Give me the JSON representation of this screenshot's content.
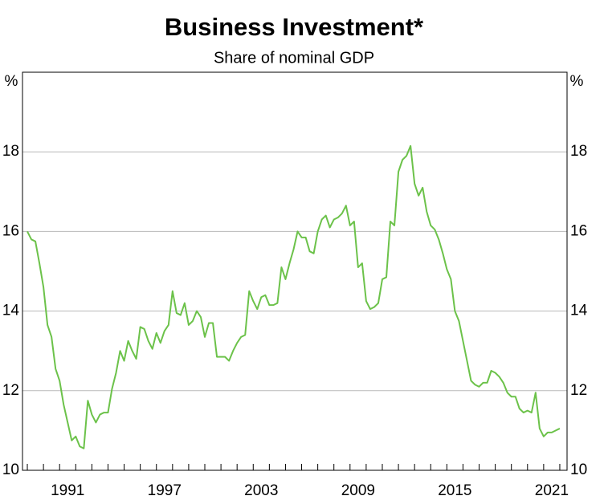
{
  "chart_data": {
    "type": "line",
    "title": "Business Investment*",
    "subtitle": "Share of nominal GDP",
    "y_unit": "%",
    "x": [
      1989,
      1989.25,
      1989.5,
      1989.75,
      1990,
      1990.25,
      1990.5,
      1990.75,
      1991,
      1991.25,
      1991.5,
      1991.75,
      1992,
      1992.25,
      1992.5,
      1992.75,
      1993,
      1993.25,
      1993.5,
      1993.75,
      1994,
      1994.25,
      1994.5,
      1994.75,
      1995,
      1995.25,
      1995.5,
      1995.75,
      1996,
      1996.25,
      1996.5,
      1996.75,
      1997,
      1997.25,
      1997.5,
      1997.75,
      1998,
      1998.25,
      1998.5,
      1998.75,
      1999,
      1999.25,
      1999.5,
      1999.75,
      2000,
      2000.25,
      2000.5,
      2000.75,
      2001,
      2001.25,
      2001.5,
      2001.75,
      2002,
      2002.25,
      2002.5,
      2002.75,
      2003,
      2003.25,
      2003.5,
      2003.75,
      2004,
      2004.25,
      2004.5,
      2004.75,
      2005,
      2005.25,
      2005.5,
      2005.75,
      2006,
      2006.25,
      2006.5,
      2006.75,
      2007,
      2007.25,
      2007.5,
      2007.75,
      2008,
      2008.25,
      2008.5,
      2008.75,
      2009,
      2009.25,
      2009.5,
      2009.75,
      2010,
      2010.25,
      2010.5,
      2010.75,
      2011,
      2011.25,
      2011.5,
      2011.75,
      2012,
      2012.25,
      2012.5,
      2012.75,
      2013,
      2013.25,
      2013.5,
      2013.75,
      2014,
      2014.25,
      2014.5,
      2014.75,
      2015,
      2015.25,
      2015.5,
      2015.75,
      2016,
      2016.25,
      2016.5,
      2016.75,
      2017,
      2017.25,
      2017.5,
      2017.75,
      2018,
      2018.25,
      2018.5,
      2018.75,
      2019,
      2019.25,
      2019.5,
      2019.75,
      2020,
      2020.25,
      2020.5,
      2020.75,
      2021,
      2021.25,
      2021.5,
      2021.75,
      2022
    ],
    "series": [
      {
        "name": "Business investment",
        "color": "#6cc24a",
        "values": [
          16.0,
          15.8,
          15.75,
          15.2,
          14.6,
          13.65,
          13.35,
          12.55,
          12.25,
          11.65,
          11.2,
          10.75,
          10.85,
          10.6,
          10.55,
          11.75,
          11.4,
          11.2,
          11.4,
          11.45,
          11.45,
          12.05,
          12.45,
          13.0,
          12.75,
          13.25,
          13.0,
          12.8,
          13.6,
          13.55,
          13.25,
          13.05,
          13.45,
          13.2,
          13.5,
          13.65,
          14.5,
          13.95,
          13.9,
          14.2,
          13.65,
          13.75,
          14.0,
          13.85,
          13.35,
          13.7,
          13.7,
          12.85,
          12.85,
          12.85,
          12.75,
          13.0,
          13.2,
          13.35,
          13.4,
          14.5,
          14.25,
          14.05,
          14.35,
          14.4,
          14.15,
          14.15,
          14.2,
          15.1,
          14.8,
          15.2,
          15.55,
          16.0,
          15.85,
          15.85,
          15.5,
          15.45,
          16.0,
          16.3,
          16.4,
          16.1,
          16.3,
          16.35,
          16.45,
          16.65,
          16.15,
          16.25,
          15.1,
          15.2,
          14.25,
          14.05,
          14.1,
          14.2,
          14.8,
          14.85,
          16.25,
          16.15,
          17.5,
          17.8,
          17.9,
          18.15,
          17.2,
          16.9,
          17.1,
          16.5,
          16.15,
          16.05,
          15.8,
          15.45,
          15.05,
          14.8,
          14.0,
          13.75,
          13.25,
          12.75,
          12.25,
          12.15,
          12.1,
          12.2,
          12.2,
          12.5,
          12.45,
          12.35,
          12.2,
          11.95,
          11.85,
          11.85,
          11.55,
          11.45,
          11.5,
          11.45,
          11.95,
          11.05,
          10.85,
          10.95,
          10.95,
          11.0,
          11.05
        ]
      }
    ],
    "xlim": [
      1988.7,
      2022.45
    ],
    "xticks": [
      1991,
      1997,
      2003,
      2009,
      2015,
      2021
    ],
    "xminorticks": [
      1989,
      1990,
      1991,
      1992,
      1993,
      1994,
      1995,
      1996,
      1997,
      1998,
      1999,
      2000,
      2001,
      2002,
      2003,
      2004,
      2005,
      2006,
      2007,
      2008,
      2009,
      2010,
      2011,
      2012,
      2013,
      2014,
      2015,
      2016,
      2017,
      2018,
      2019,
      2020,
      2021,
      2022
    ],
    "ylim": [
      10,
      20
    ],
    "yticks": [
      10,
      12,
      14,
      16,
      18
    ],
    "grid": true
  }
}
